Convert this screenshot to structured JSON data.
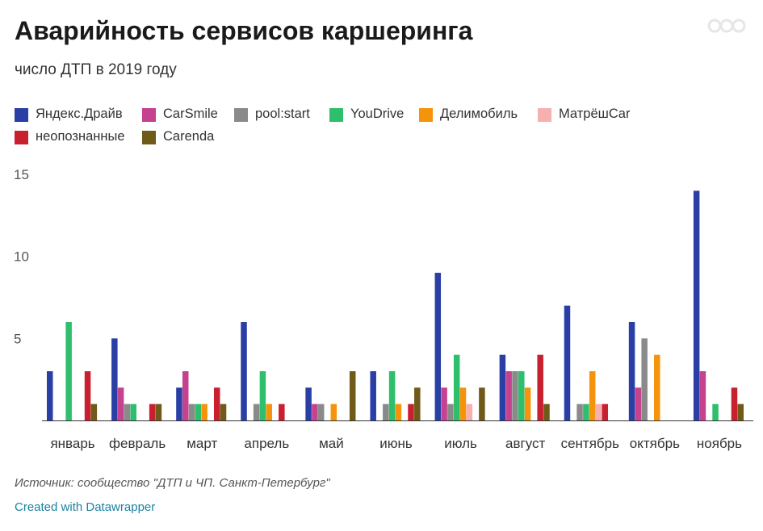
{
  "header": {
    "title": "Аварийность сервисов каршеринга",
    "subtitle": "число ДТП в 2019 году"
  },
  "footer": {
    "source": "Источник: сообщество \"ДТП и ЧП. Санкт-Петербург\"",
    "credit": "Created with Datawrapper"
  },
  "chart_data": {
    "type": "bar",
    "title": "Аварийность сервисов каршеринга",
    "subtitle": "число ДТП в 2019 году",
    "xlabel": "",
    "ylabel": "",
    "ylim": [
      0,
      15
    ],
    "yticks": [
      5,
      10,
      15
    ],
    "grid": false,
    "legend": "top",
    "categories": [
      "январь",
      "февраль",
      "март",
      "апрель",
      "май",
      "июнь",
      "июль",
      "август",
      "сентябрь",
      "октябрь",
      "ноябрь"
    ],
    "series": [
      {
        "name": "Яндекс.Драйв",
        "color": "#2a3fa5",
        "values": [
          3,
          5,
          2,
          6,
          2,
          3,
          9,
          4,
          7,
          6,
          14
        ]
      },
      {
        "name": "CarSmile",
        "color": "#c4428e",
        "values": [
          0,
          2,
          3,
          0,
          1,
          0,
          2,
          3,
          0,
          2,
          3
        ]
      },
      {
        "name": "pool:start",
        "color": "#8a8a8a",
        "values": [
          0,
          1,
          1,
          1,
          1,
          1,
          1,
          3,
          1,
          5,
          0
        ]
      },
      {
        "name": "YouDrive",
        "color": "#2dbf6c",
        "values": [
          6,
          1,
          1,
          3,
          0,
          3,
          4,
          3,
          1,
          0,
          1
        ]
      },
      {
        "name": "Делимобиль",
        "color": "#f5930a",
        "values": [
          0,
          0,
          1,
          1,
          1,
          1,
          2,
          2,
          3,
          4,
          0
        ]
      },
      {
        "name": "МатрёшCar",
        "color": "#f7b0b0",
        "values": [
          0,
          0,
          0,
          0,
          0,
          0,
          1,
          0,
          1,
          0,
          0
        ]
      },
      {
        "name": "неопознанные",
        "color": "#c8202f",
        "values": [
          3,
          1,
          2,
          1,
          0,
          1,
          0,
          4,
          1,
          0,
          2
        ]
      },
      {
        "name": "Carenda",
        "color": "#6f5a1a",
        "values": [
          1,
          1,
          1,
          0,
          3,
          2,
          2,
          1,
          0,
          0,
          1
        ]
      }
    ]
  }
}
